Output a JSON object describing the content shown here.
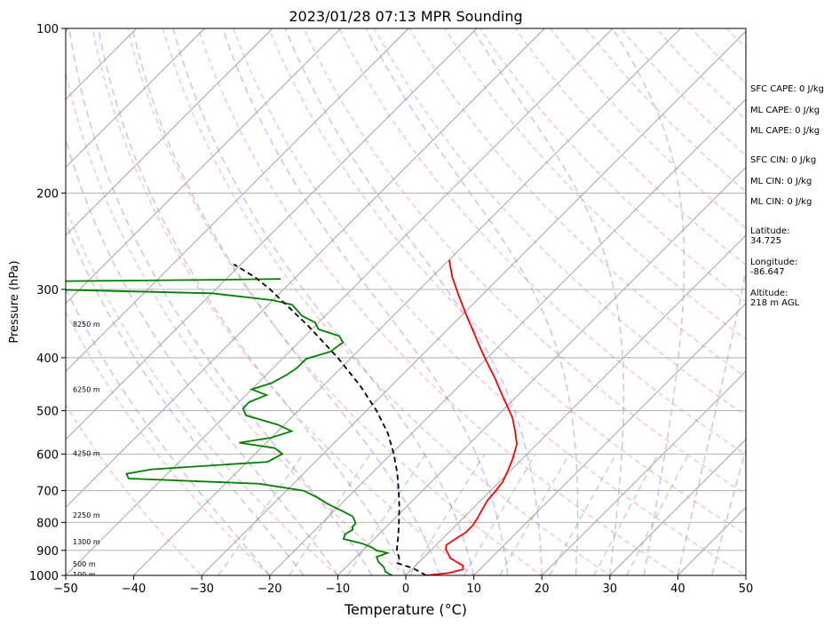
{
  "chart_data": {
    "type": "line",
    "title": "2023/01/28 07:13 MPR Sounding",
    "xlabel": "Temperature (°C)",
    "ylabel": "Pressure (hPa)",
    "xlim": [
      -50,
      50
    ],
    "ylim": [
      1000,
      100
    ],
    "y_scale": "log",
    "x_ticks": [
      -50,
      -40,
      -30,
      -20,
      -10,
      0,
      10,
      20,
      30,
      40,
      50
    ],
    "y_ticks": [
      1000,
      900,
      800,
      700,
      600,
      500,
      400,
      300,
      200,
      100
    ],
    "x_tick_labels": [
      "−50",
      "−40",
      "−30",
      "−20",
      "−10",
      "0",
      "10",
      "20",
      "30",
      "40",
      "50"
    ],
    "y_tick_labels": [
      "1000",
      "900",
      "800",
      "700",
      "600",
      "500",
      "400",
      "300",
      "200",
      "100"
    ],
    "grid": true,
    "skew_t": true,
    "series": [
      {
        "role": "temperature",
        "color": "#ff0000",
        "points": [
          [
            3,
            1000
          ],
          [
            6,
            990
          ],
          [
            7.5,
            975
          ],
          [
            7,
            960
          ],
          [
            5.5,
            945
          ],
          [
            4,
            930
          ],
          [
            3,
            912
          ],
          [
            2,
            895
          ],
          [
            1.5,
            880
          ],
          [
            2,
            855
          ],
          [
            2.5,
            835
          ],
          [
            2.5,
            810
          ],
          [
            2.2,
            790
          ],
          [
            1.6,
            760
          ],
          [
            1,
            730
          ],
          [
            0.8,
            700
          ],
          [
            0.5,
            675
          ],
          [
            -0.5,
            640
          ],
          [
            -1.5,
            610
          ],
          [
            -3,
            575
          ],
          [
            -5.5,
            540
          ],
          [
            -7.5,
            515
          ],
          [
            -10,
            490
          ],
          [
            -13,
            462
          ],
          [
            -16,
            435
          ],
          [
            -19.5,
            407
          ],
          [
            -23,
            380
          ],
          [
            -26.5,
            354
          ],
          [
            -30,
            330
          ],
          [
            -33.5,
            307
          ],
          [
            -37,
            285
          ],
          [
            -40,
            265
          ]
        ]
      },
      {
        "role": "dewpoint",
        "color": "#008000",
        "points": [
          [
            -2,
            1000
          ],
          [
            -3.5,
            985
          ],
          [
            -4.5,
            965
          ],
          [
            -6,
            945
          ],
          [
            -7,
            925
          ],
          [
            -6,
            910
          ],
          [
            -8,
            900
          ],
          [
            -9,
            890
          ],
          [
            -11,
            875
          ],
          [
            -13,
            865
          ],
          [
            -14.5,
            858
          ],
          [
            -15,
            840
          ],
          [
            -14.5,
            825
          ],
          [
            -15,
            815
          ],
          [
            -15,
            805
          ],
          [
            -15.5,
            795
          ],
          [
            -16.5,
            780
          ],
          [
            -18.5,
            765
          ],
          [
            -22,
            740
          ],
          [
            -24.5,
            720
          ],
          [
            -27.5,
            700
          ],
          [
            -35,
            680
          ],
          [
            -55,
            665
          ],
          [
            -56,
            652
          ],
          [
            -53,
            640
          ],
          [
            -37,
            620
          ],
          [
            -36,
            600
          ],
          [
            -38,
            585
          ],
          [
            -44,
            572
          ],
          [
            -40,
            560
          ],
          [
            -38,
            545
          ],
          [
            -41,
            530
          ],
          [
            -47,
            510
          ],
          [
            -48.5,
            495
          ],
          [
            -48.5,
            482
          ],
          [
            -47,
            468
          ],
          [
            -50,
            457
          ],
          [
            -48,
            445
          ],
          [
            -47,
            430
          ],
          [
            -46.5,
            418
          ],
          [
            -46.5,
            402
          ],
          [
            -44,
            390
          ],
          [
            -43.5,
            375
          ],
          [
            -45,
            365
          ],
          [
            -49,
            355
          ],
          [
            -50.5,
            345
          ],
          [
            -53.5,
            335
          ],
          [
            -56.5,
            320
          ],
          [
            -60,
            314
          ],
          [
            -70,
            305
          ],
          [
            -95,
            300
          ],
          [
            -96,
            290
          ],
          [
            -70,
            288
          ],
          [
            -62,
            287
          ]
        ]
      },
      {
        "role": "parcel",
        "color": "#000000",
        "style": "dashed",
        "points": [
          [
            3,
            1000
          ],
          [
            0,
            970
          ],
          [
            -3,
            950
          ],
          [
            -3.5,
            930
          ],
          [
            -5,
            900
          ],
          [
            -6.8,
            850
          ],
          [
            -8.8,
            800
          ],
          [
            -11,
            750
          ],
          [
            -13.5,
            700
          ],
          [
            -16.3,
            650
          ],
          [
            -19.6,
            600
          ],
          [
            -23.5,
            550
          ],
          [
            -28.5,
            500
          ],
          [
            -34.6,
            450
          ],
          [
            -42,
            400
          ],
          [
            -51,
            350
          ],
          [
            -62,
            300
          ],
          [
            -66,
            285
          ],
          [
            -71,
            270
          ]
        ]
      }
    ],
    "height_labels": [
      {
        "text": "100 m",
        "p": 996
      },
      {
        "text": "500 m",
        "p": 952
      },
      {
        "text": "1300 m",
        "p": 867
      },
      {
        "text": "2250 m",
        "p": 775
      },
      {
        "text": "4250 m",
        "p": 598
      },
      {
        "text": "6250 m",
        "p": 457
      },
      {
        "text": "8250 m",
        "p": 347
      }
    ]
  },
  "stats": {
    "sfc_cape": "SFC CAPE: 0 J/kg",
    "ml_cape_1": "ML CAPE: 0 J/kg",
    "ml_cape_2": "ML CAPE: 0 J/kg",
    "sfc_cin": "SFC CIN: 0 J/kg",
    "ml_cin_1": "ML CIN: 0 J/kg",
    "ml_cin_2": "ML CIN: 0 J/kg",
    "latitude_label": "Latitude:",
    "latitude_value": "34.725",
    "longitude_label": "Longitude:",
    "longitude_value": "-86.647",
    "altitude_label": "Altitude:",
    "altitude_value": "218 m AGL"
  }
}
